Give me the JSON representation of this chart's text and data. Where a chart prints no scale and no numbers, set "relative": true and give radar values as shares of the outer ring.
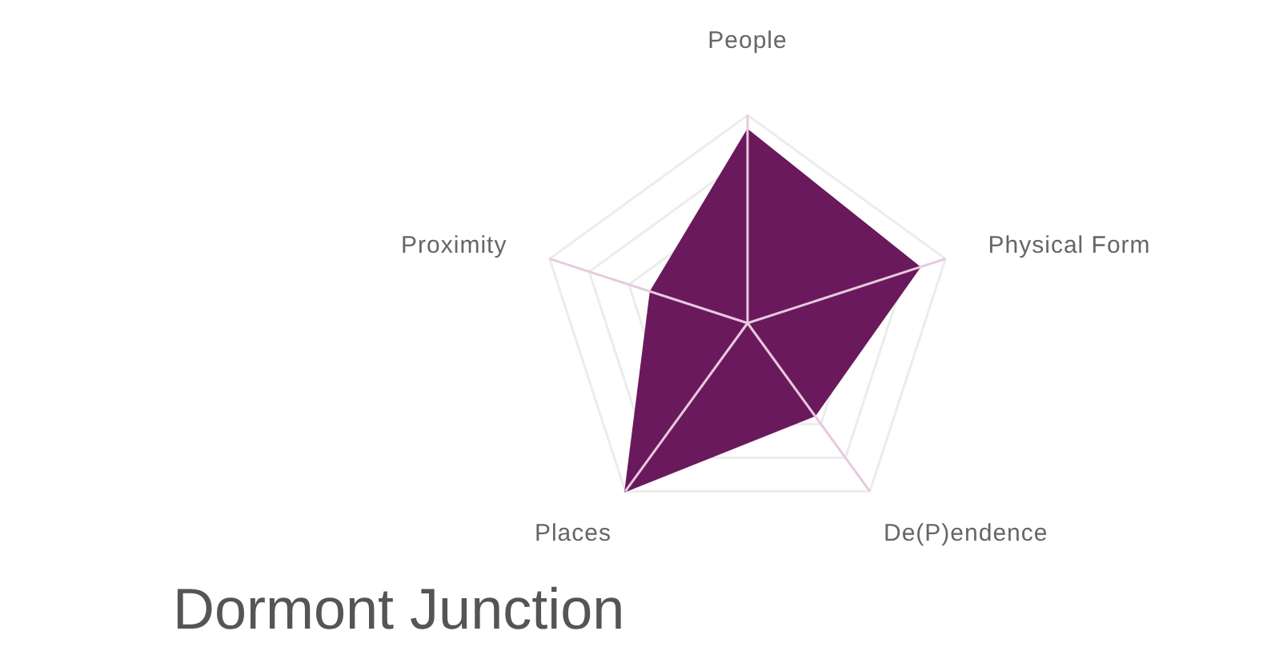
{
  "chart_data": {
    "type": "radar",
    "title": "Dormont Junction",
    "categories": [
      "People",
      "Physical Form",
      "De(P)endence",
      "Places",
      "Proximity"
    ],
    "relative": true,
    "grid": true,
    "series": [
      {
        "color": "#6a1a5c",
        "values": [
          0.93,
          0.87,
          0.55,
          1,
          0.49
        ]
      }
    ]
  }
}
